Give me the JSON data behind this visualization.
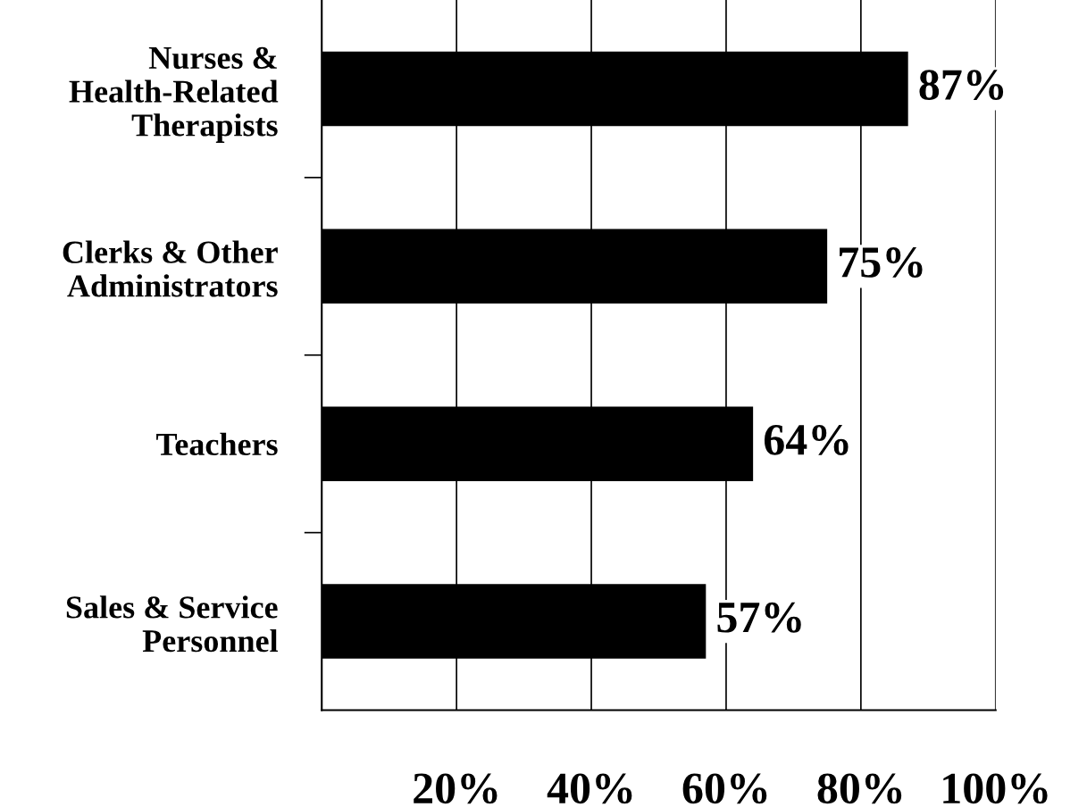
{
  "chart_data": {
    "type": "bar",
    "orientation": "horizontal",
    "categories": [
      "Nurses &\nHealth-Related\nTherapists",
      "Clerks & Other\nAdministrators",
      "Teachers",
      "Sales & Service\nPersonnel"
    ],
    "values": [
      87,
      75,
      64,
      57
    ],
    "color": "#000000",
    "value_labels": [
      "87%",
      "75%",
      "64%",
      "57%"
    ],
    "xlim": [
      0,
      100
    ],
    "xticks": [
      {
        "value": 20,
        "label": "20%"
      },
      {
        "value": 40,
        "label": "40%"
      },
      {
        "value": 60,
        "label": "60%"
      },
      {
        "value": 80,
        "label": "80%"
      },
      {
        "value": 100,
        "label": "100%"
      }
    ],
    "grid": "x",
    "legend": false
  }
}
